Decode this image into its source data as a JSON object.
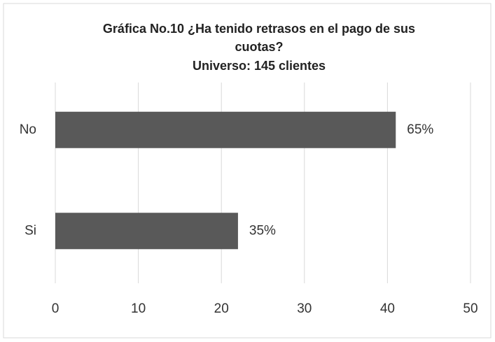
{
  "chart_data": {
    "type": "bar",
    "orientation": "horizontal",
    "title": [
      "Gráfica No.10 ¿Ha tenido retrasos en el pago de sus",
      "cuotas?",
      "Universo: 145 clientes"
    ],
    "categories": [
      "No",
      "Si"
    ],
    "values": [
      41,
      22
    ],
    "data_labels": [
      "65%",
      "35%"
    ],
    "color": "#595959",
    "xlim": [
      0,
      50
    ],
    "xticks": [
      0,
      10,
      20,
      30,
      40,
      50
    ],
    "grid": true
  }
}
